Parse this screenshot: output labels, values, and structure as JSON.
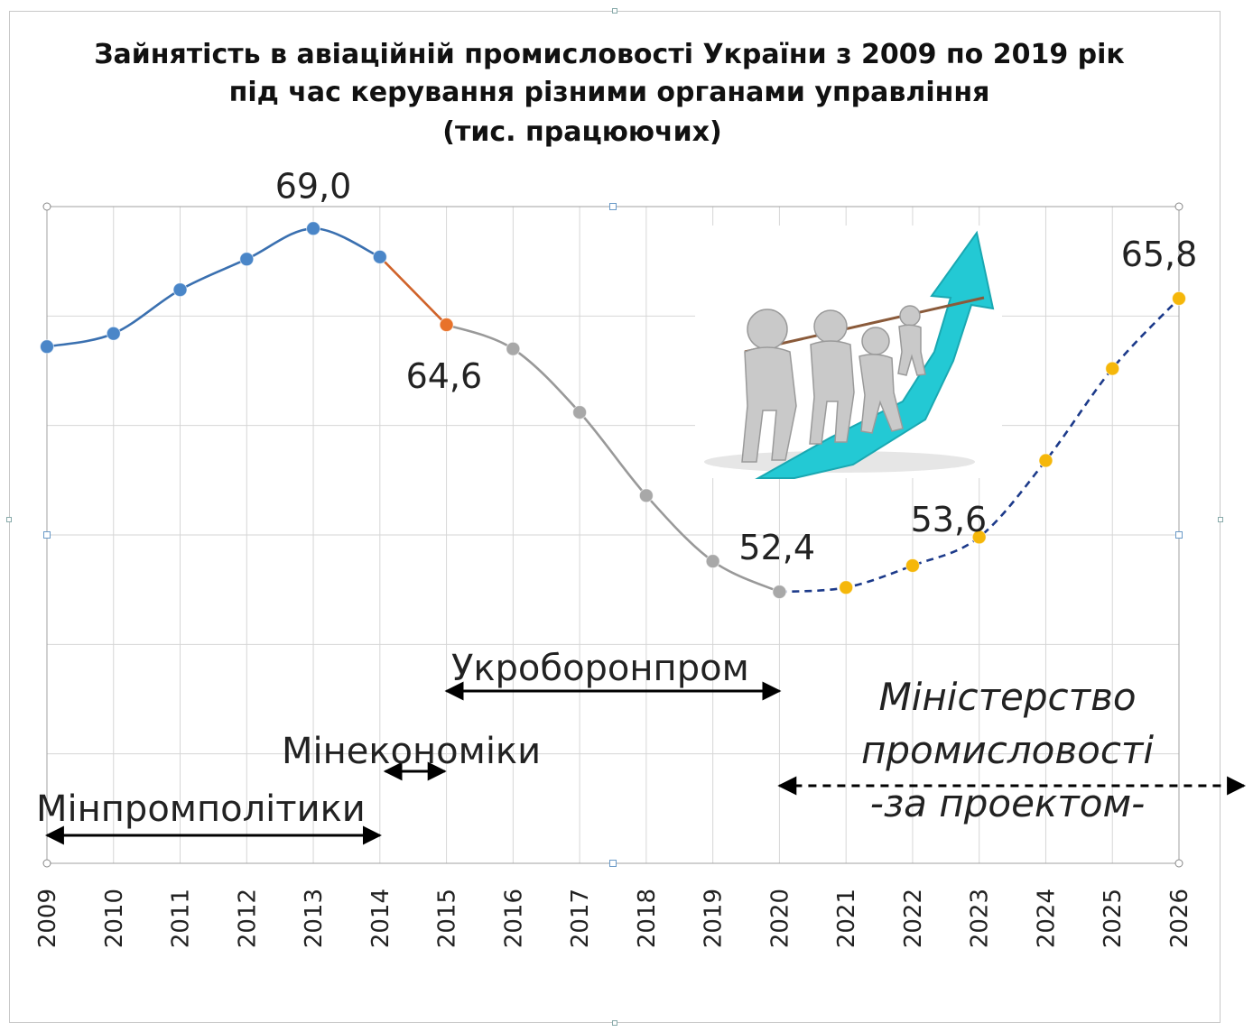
{
  "title_lines": [
    "Зайнятість в авіаційній промисловості України з 2009 по 2019 рік",
    "під час керування різними органами управління"
  ],
  "subtitle": "(тис. працюючих)",
  "chart_data": {
    "type": "line",
    "x_label": "",
    "y_label": "",
    "ylim": [
      40.0,
      70.0
    ],
    "grid": true,
    "categories": [
      "2009",
      "2010",
      "2011",
      "2012",
      "2013",
      "2014",
      "2015",
      "2016",
      "2017",
      "2018",
      "2019",
      "2020",
      "2021",
      "2022",
      "2023",
      "2024",
      "2025",
      "2026"
    ],
    "series": [
      {
        "segment": "Мінпромполітики",
        "color": "#4a86c8",
        "line_color": "#3a70b0",
        "dashed": false,
        "x": [
          "2009",
          "2010",
          "2011",
          "2012",
          "2013",
          "2014"
        ],
        "values": [
          63.6,
          64.2,
          66.2,
          67.6,
          69.0,
          67.7
        ]
      },
      {
        "segment": "Мінекономіки",
        "color": "#e8722a",
        "line_color": "#d0632a",
        "dashed": false,
        "x": [
          "2014",
          "2015"
        ],
        "values": [
          67.7,
          64.6
        ]
      },
      {
        "segment": "Укроборонпром",
        "color": "#a8a8a8",
        "line_color": "#999999",
        "dashed": false,
        "x": [
          "2015",
          "2016",
          "2017",
          "2018",
          "2019",
          "2020"
        ],
        "values": [
          64.6,
          63.5,
          60.6,
          56.8,
          53.8,
          52.4
        ]
      },
      {
        "segment": "Міністерство промисловості -за проектом-",
        "color": "#f5b70a",
        "line_color": "#1c3a8a",
        "dashed": true,
        "x": [
          "2020",
          "2021",
          "2022",
          "2023",
          "2024",
          "2025",
          "2026"
        ],
        "values": [
          52.4,
          52.6,
          53.6,
          54.9,
          58.4,
          62.6,
          65.8
        ]
      }
    ],
    "data_labels": [
      {
        "x": "2013",
        "value": 69.0,
        "text": "69,0"
      },
      {
        "x": "2015",
        "value": 64.6,
        "text": "64,6"
      },
      {
        "x": "2020",
        "value": 52.4,
        "text": "52,4"
      },
      {
        "x": "2022",
        "value": 53.6,
        "text": "53,6"
      },
      {
        "x": "2026",
        "value": 65.8,
        "text": "65,8"
      }
    ],
    "periods": [
      {
        "label": "Мінпромполітики",
        "from": "2009",
        "to": "2014",
        "style": "solid"
      },
      {
        "label": "Мінекономіки",
        "from": "2014",
        "to": "2015",
        "style": "solid"
      },
      {
        "label": "Укроборонпром",
        "from": "2015",
        "to": "2020",
        "style": "solid"
      },
      {
        "label_lines": [
          "Міністерство",
          "промисловості",
          "-за проектом-"
        ],
        "from": "2020",
        "to": "",
        "style": "dashed",
        "italic": true
      }
    ]
  },
  "colors": {
    "grid": "#d6d6d6",
    "plot_border": "#a0a0a0",
    "arrow_teal": "#23c9d4"
  },
  "image": {
    "icon": "team-pulling-rope-up-arrow-illustration"
  }
}
